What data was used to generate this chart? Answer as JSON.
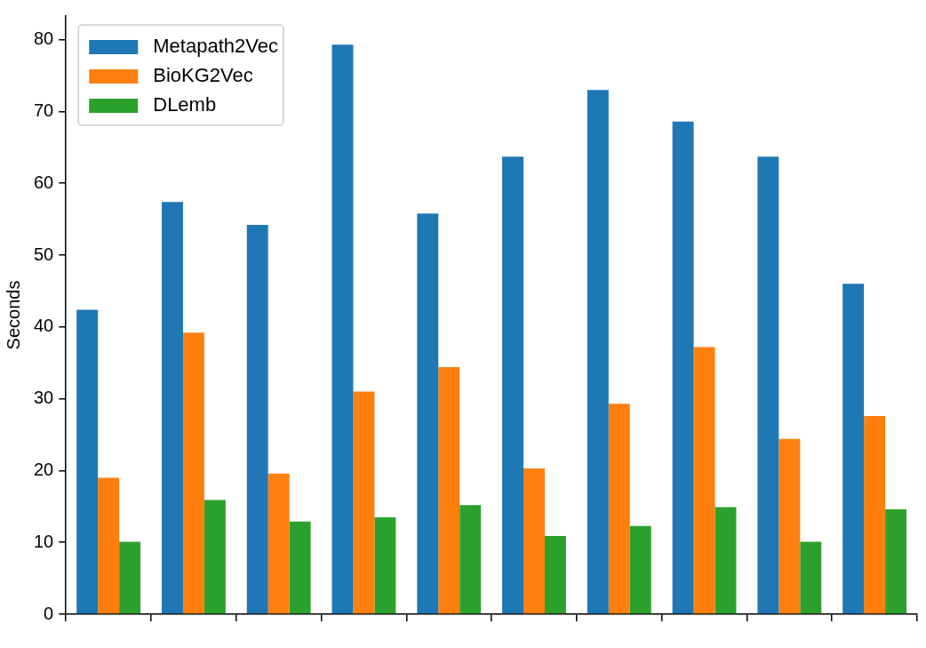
{
  "chart_data": {
    "type": "bar",
    "ylabel": "Seconds",
    "categories": [
      null,
      null,
      null,
      null,
      null,
      null,
      null,
      null,
      null,
      null
    ],
    "series": [
      {
        "name": "Metapath2Vec",
        "color": "#1f77b4",
        "values": [
          42.4,
          57.4,
          54.2,
          79.3,
          55.8,
          63.7,
          73.0,
          68.6,
          63.7,
          46.0
        ]
      },
      {
        "name": "BioKG2Vec",
        "color": "#ff7f0e",
        "values": [
          19.0,
          39.2,
          19.6,
          31.0,
          34.4,
          20.3,
          29.3,
          37.2,
          24.4,
          27.6
        ]
      },
      {
        "name": "DLemb",
        "color": "#2ca02c",
        "values": [
          10.1,
          15.9,
          12.9,
          13.5,
          15.2,
          10.9,
          12.3,
          14.9,
          10.1,
          14.6
        ]
      }
    ],
    "ylim": [
      0,
      83.3
    ],
    "yticks": [
      0,
      10,
      20,
      30,
      40,
      50,
      60,
      70,
      80
    ],
    "grid": false,
    "legend": "top left"
  }
}
